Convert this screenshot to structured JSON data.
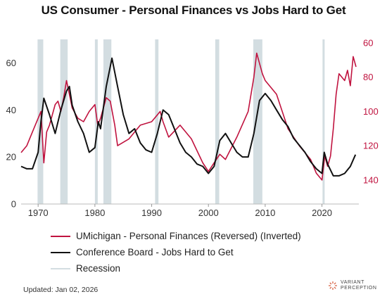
{
  "title": "US Consumer - Personal Finances vs Jobs Hard to Get",
  "footer": "Updated: Jan 02, 2026",
  "brand": {
    "line1": "VARIANT",
    "line2": "PERCEPTION"
  },
  "colors": {
    "series1": "#c0133f",
    "series2": "#111111",
    "recession": "#d3dde1",
    "right_axis": "#c0133f",
    "left_axis": "#333333"
  },
  "legend": [
    {
      "label": "UMichigan - Personal Finances (Reversed) (Inverted)"
    },
    {
      "label": "Conference Board - Jobs Hard to Get"
    },
    {
      "label": "Recession"
    }
  ],
  "chart_data": {
    "type": "line",
    "title": "US Consumer - Personal Finances vs Jobs Hard to Get",
    "xlim": [
      1967,
      2026.5
    ],
    "x_ticks": [
      1970,
      1980,
      1990,
      2000,
      2010,
      2020
    ],
    "y_left": {
      "lim": [
        0,
        70
      ],
      "ticks": [
        0,
        20,
        40,
        60
      ]
    },
    "y_right": {
      "lim": [
        154,
        58
      ],
      "ticks": [
        60,
        80,
        100,
        120,
        140
      ],
      "inverted": true
    },
    "recessions": [
      [
        1969.9,
        1970.9
      ],
      [
        1973.9,
        1975.2
      ],
      [
        1980.0,
        1980.5
      ],
      [
        1981.5,
        1982.9
      ],
      [
        1990.6,
        1991.2
      ],
      [
        2001.2,
        2001.9
      ],
      [
        2007.9,
        2009.5
      ],
      [
        2020.1,
        2020.4
      ]
    ],
    "series": [
      {
        "name": "UMichigan - Personal Finances (Reversed) (Inverted)",
        "axis": "right",
        "x": [
          1967,
          1968,
          1969,
          1970,
          1970.5,
          1971,
          1971.5,
          1972,
          1973,
          1973.5,
          1974,
          1974.5,
          1975,
          1975.5,
          1976,
          1977,
          1978,
          1979,
          1980,
          1980.5,
          1981,
          1982,
          1982.7,
          1983.5,
          1984,
          1986,
          1988,
          1990,
          1991,
          1991.5,
          1992,
          1993,
          1995,
          1997,
          1999,
          2000,
          2001,
          2002,
          2003,
          2005,
          2007,
          2008,
          2008.5,
          2009,
          2009.5,
          2010,
          2011,
          2012,
          2014,
          2016,
          2018,
          2019,
          2020,
          2020.5,
          2021,
          2021.5,
          2022,
          2022.5,
          2023,
          2024,
          2024.5,
          2025,
          2025.5,
          2026
        ],
        "y": [
          124,
          120,
          112,
          104,
          100,
          130,
          112,
          108,
          96,
          94,
          100,
          92,
          82,
          90,
          98,
          104,
          106,
          100,
          96,
          108,
          104,
          92,
          94,
          108,
          120,
          116,
          108,
          106,
          102,
          100,
          106,
          115,
          108,
          116,
          130,
          135,
          130,
          125,
          128,
          115,
          100,
          80,
          66,
          72,
          78,
          82,
          86,
          90,
          110,
          120,
          128,
          136,
          140,
          126,
          132,
          126,
          110,
          90,
          78,
          82,
          76,
          85,
          68,
          74
        ]
      },
      {
        "name": "Conference Board - Jobs Hard to Get",
        "axis": "left",
        "x": [
          1967,
          1968,
          1969,
          1970,
          1970.5,
          1971,
          1972,
          1973,
          1974,
          1975,
          1975.5,
          1976,
          1977,
          1978,
          1979,
          1980,
          1980.6,
          1981,
          1982,
          1983,
          1984,
          1985,
          1986,
          1987,
          1988,
          1989,
          1990,
          1991,
          1992,
          1993,
          1994,
          1995,
          1996,
          1997,
          1998,
          1999,
          2000,
          2001,
          2002,
          2003,
          2004,
          2005,
          2006,
          2007,
          2008,
          2009,
          2010,
          2011,
          2012,
          2013,
          2014,
          2015,
          2016,
          2017,
          2018,
          2019,
          2020,
          2020.4,
          2021,
          2022,
          2023,
          2024,
          2025,
          2025.9
        ],
        "y": [
          16,
          15,
          15,
          22,
          35,
          45,
          38,
          30,
          40,
          48,
          50,
          42,
          35,
          30,
          22,
          24,
          35,
          32,
          50,
          62,
          50,
          38,
          30,
          32,
          26,
          23,
          22,
          30,
          40,
          38,
          32,
          26,
          22,
          20,
          17,
          16,
          13,
          16,
          27,
          30,
          26,
          22,
          20,
          20,
          30,
          44,
          47,
          44,
          40,
          36,
          33,
          28,
          25,
          22,
          18,
          15,
          13,
          22,
          17,
          12,
          12,
          13,
          16,
          21
        ]
      }
    ]
  }
}
